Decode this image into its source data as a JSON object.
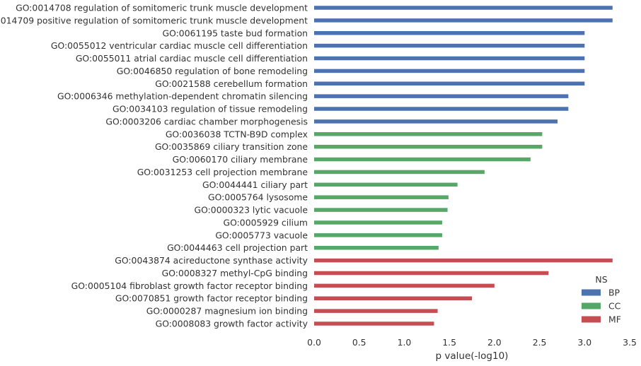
{
  "chart_data": {
    "type": "bar",
    "orientation": "horizontal",
    "title": "",
    "xlabel": "p value(-log10)",
    "ylabel": "",
    "xlim": [
      0,
      3.5
    ],
    "xticks": [
      "0.0",
      "0.5",
      "1.0",
      "1.5",
      "2.0",
      "2.5",
      "3.0",
      "3.5"
    ],
    "grid": false,
    "legend": {
      "title": "NS",
      "placement": "right"
    },
    "series": [
      {
        "name": "BP",
        "color": "#4c72b0",
        "categories": [
          "GO:0014708 regulation of somitomeric trunk muscle development",
          "GO:0014709 positive regulation of somitomeric trunk muscle development",
          "GO:0061195 taste bud formation",
          "GO:0055012 ventricular cardiac muscle cell differentiation",
          "GO:0055011 atrial cardiac muscle cell differentiation",
          "GO:0046850 regulation of bone remodeling",
          "GO:0021588 cerebellum formation",
          "GO:0006346 methylation-dependent chromatin silencing",
          "GO:0034103 regulation of tissue remodeling",
          "GO:0003206 cardiac chamber morphogenesis"
        ],
        "values": [
          3.31,
          3.31,
          3.0,
          3.0,
          3.0,
          3.0,
          3.0,
          2.82,
          2.82,
          2.7
        ]
      },
      {
        "name": "CC",
        "color": "#55a868",
        "categories": [
          "GO:0036038 TCTN-B9D complex",
          "GO:0035869 ciliary transition zone",
          "GO:0060170 ciliary membrane",
          "GO:0031253 cell projection membrane",
          "GO:0044441 ciliary part",
          "GO:0005764 lysosome",
          "GO:0000323 lytic vacuole",
          "GO:0005929 cilium",
          "GO:0005773 vacuole",
          "GO:0044463 cell projection part"
        ],
        "values": [
          2.53,
          2.53,
          2.4,
          1.89,
          1.59,
          1.49,
          1.48,
          1.42,
          1.42,
          1.38
        ]
      },
      {
        "name": "MF",
        "color": "#c44e52",
        "categories": [
          "GO:0043874 acireductone synthase activity",
          "GO:0008327 methyl-CpG binding",
          "GO:0005104 fibroblast growth factor receptor binding",
          "GO:0070851 growth factor receptor binding",
          "GO:0000287 magnesium ion binding",
          "GO:0008083 growth factor activity"
        ],
        "values": [
          3.31,
          2.6,
          2.0,
          1.75,
          1.37,
          1.33
        ]
      }
    ]
  }
}
